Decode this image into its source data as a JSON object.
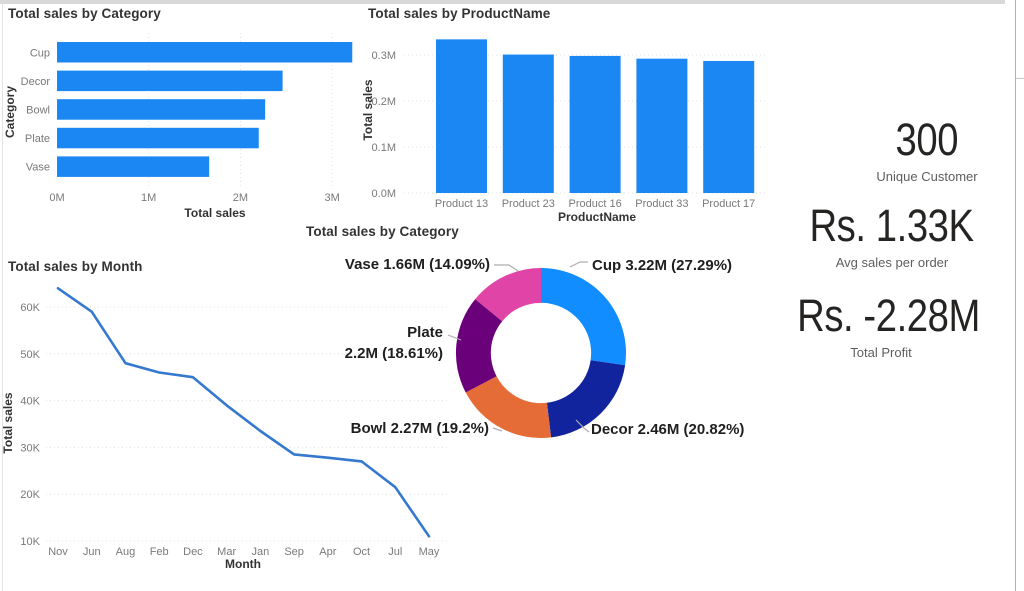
{
  "theme": {
    "bar_color": "#1B87F2",
    "line_color": "#3579CE",
    "gridline_color": "#E1E1E1",
    "tick_label_color": "#797979",
    "axis_title_color": "#333333",
    "visual_title_color": "#333333",
    "kpi_value_color": "#252423",
    "kpi_label_color": "#605E5C",
    "leader_line_color": "#ADADAD",
    "donut_label_color": "#1F1F1F"
  },
  "kpis": [
    {
      "value": "300",
      "label": "Unique Customer"
    },
    {
      "value": "Rs. 1.33K",
      "label": "Avg sales per order"
    },
    {
      "value": "Rs. -2.28M",
      "label": "Total Profit"
    }
  ],
  "chart_data": [
    {
      "id": "category_bar",
      "type": "bar",
      "orientation": "horizontal",
      "title": "Total sales by Category",
      "categories": [
        "Cup",
        "Decor",
        "Bowl",
        "Plate",
        "Vase"
      ],
      "values": [
        3.22,
        2.46,
        2.27,
        2.2,
        1.66
      ],
      "value_unit": "M",
      "xlabel": "Total sales",
      "ylabel": "Category",
      "x_ticks": [
        {
          "label": "0M",
          "value": 0
        },
        {
          "label": "1M",
          "value": 1
        },
        {
          "label": "2M",
          "value": 2
        },
        {
          "label": "3M",
          "value": 3
        }
      ],
      "xlim": [
        0,
        3.3
      ],
      "grid": true,
      "legend": "none"
    },
    {
      "id": "product_bar",
      "type": "bar",
      "orientation": "vertical",
      "title": "Total sales by ProductName",
      "categories": [
        "Product 13",
        "Product 23",
        "Product 16",
        "Product 33",
        "Product 17"
      ],
      "values": [
        0.334,
        0.301,
        0.298,
        0.292,
        0.287
      ],
      "value_unit": "M",
      "xlabel": "ProductName",
      "ylabel": "Total sales",
      "y_ticks": [
        {
          "label": "0.0M",
          "value": 0
        },
        {
          "label": "0.1M",
          "value": 0.1
        },
        {
          "label": "0.2M",
          "value": 0.2
        },
        {
          "label": "0.3M",
          "value": 0.3
        }
      ],
      "ylim": [
        0,
        0.35
      ],
      "grid": true,
      "legend": "none"
    },
    {
      "id": "sales_by_month",
      "type": "line",
      "title": "Total sales by Month",
      "categories": [
        "Nov",
        "Jun",
        "Aug",
        "Feb",
        "Dec",
        "Mar",
        "Jan",
        "Sep",
        "Apr",
        "Oct",
        "Jul",
        "May"
      ],
      "values": [
        64,
        59,
        48,
        46,
        45,
        39,
        33.5,
        28.5,
        27.8,
        27,
        21.5,
        11
      ],
      "value_unit": "K",
      "xlabel": "Month",
      "ylabel": "Total sales",
      "y_ticks": [
        {
          "label": "10K",
          "value": 10
        },
        {
          "label": "20K",
          "value": 20
        },
        {
          "label": "30K",
          "value": 30
        },
        {
          "label": "40K",
          "value": 40
        },
        {
          "label": "50K",
          "value": 50
        },
        {
          "label": "60K",
          "value": 60
        }
      ],
      "ylim": [
        10,
        65
      ],
      "grid": true,
      "legend": "none"
    },
    {
      "id": "category_donut",
      "type": "pie",
      "subtype": "donut",
      "title": "Total sales by Category",
      "inner_radius_ratio": 0.59,
      "labels": "outside",
      "legend": "none",
      "slices": [
        {
          "name": "Cup",
          "value_label": "3.22M",
          "pct": 27.29,
          "color": "#118DFF"
        },
        {
          "name": "Decor",
          "value_label": "2.46M",
          "pct": 20.82,
          "color": "#12239E"
        },
        {
          "name": "Bowl",
          "value_label": "2.27M",
          "pct": 19.2,
          "color": "#E66C37"
        },
        {
          "name": "Plate",
          "value_label": "2.2M",
          "pct": 18.61,
          "color": "#6B007B"
        },
        {
          "name": "Vase",
          "value_label": "1.66M",
          "pct": 14.09,
          "color": "#E044A7"
        }
      ]
    }
  ]
}
